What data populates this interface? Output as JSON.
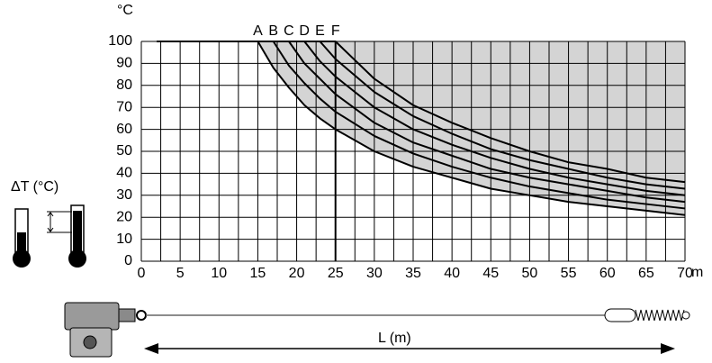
{
  "chart_data": {
    "type": "line",
    "y_unit": "°C",
    "x_unit": "m",
    "delta_label": "ΔT (°C)",
    "length_label": "L (m)",
    "x": [
      2,
      15,
      17,
      19,
      21,
      23,
      25,
      30,
      35,
      40,
      45,
      50,
      55,
      60,
      65,
      70
    ],
    "series": [
      {
        "name": "A",
        "color": "#000000",
        "values": [
          100,
          100,
          88,
          79,
          71,
          65,
          60,
          50,
          43,
          38,
          33,
          30,
          27,
          25,
          23,
          21
        ]
      },
      {
        "name": "B",
        "color": "#000000",
        "values": [
          100,
          100,
          100,
          89,
          81,
          74,
          68,
          57,
          49,
          43,
          38,
          34,
          31,
          28,
          26,
          24
        ]
      },
      {
        "name": "C",
        "color": "#000000",
        "values": [
          100,
          100,
          100,
          100,
          90,
          83,
          76,
          63,
          54,
          48,
          42,
          38,
          35,
          32,
          29,
          27
        ]
      },
      {
        "name": "D",
        "color": "#000000",
        "values": [
          100,
          100,
          100,
          100,
          100,
          91,
          84,
          70,
          60,
          53,
          47,
          42,
          38,
          35,
          32,
          30
        ]
      },
      {
        "name": "E",
        "color": "#000000",
        "values": [
          100,
          100,
          100,
          100,
          100,
          100,
          92,
          77,
          66,
          58,
          51,
          46,
          42,
          38,
          35,
          33
        ]
      },
      {
        "name": "F",
        "color": "#000000",
        "values": [
          100,
          100,
          100,
          100,
          100,
          100,
          100,
          83,
          71,
          63,
          56,
          50,
          45,
          42,
          38,
          36
        ]
      }
    ],
    "series_label_x": [
      15,
      17,
      19,
      21,
      23,
      25
    ],
    "shade_color": "#d4d4d4",
    "xlim": [
      0,
      70
    ],
    "ylim": [
      0,
      100
    ],
    "xticks": [
      0,
      5,
      10,
      15,
      20,
      25,
      30,
      35,
      40,
      45,
      50,
      55,
      60,
      65,
      70
    ],
    "x_minor_ticks": [
      2.5,
      7.5,
      12.5,
      17.5,
      22.5,
      27.5,
      32.5,
      37.5,
      42.5,
      47.5,
      52.5,
      57.5,
      62.5,
      67.5
    ],
    "yticks": [
      0,
      10,
      20,
      30,
      40,
      50,
      60,
      70,
      80,
      90,
      100
    ],
    "emphasis_x": 25,
    "grid": true
  }
}
